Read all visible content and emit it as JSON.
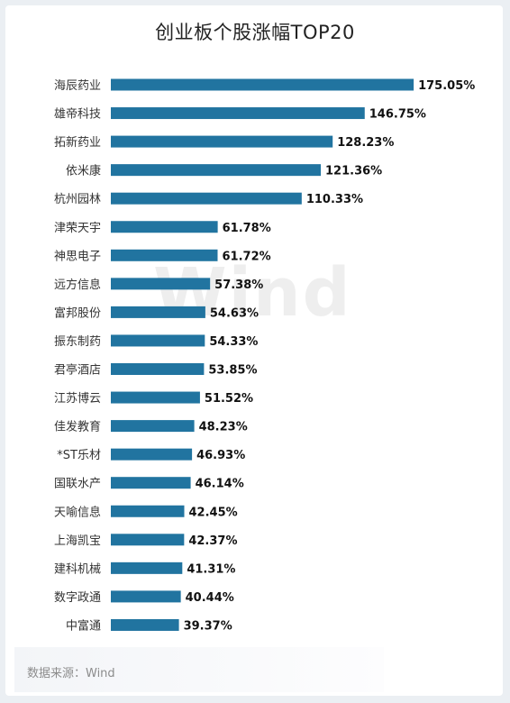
{
  "title": "创业板个股涨幅TOP20",
  "watermark": "Wind",
  "source": "数据来源：Wind",
  "colors": {
    "bar": "#2174a0",
    "background": "#ebeff3"
  },
  "chart_data": {
    "type": "bar",
    "orientation": "horizontal",
    "title": "创业板个股涨幅TOP20",
    "categories": [
      "海辰药业",
      "雄帝科技",
      "拓新药业",
      "依米康",
      "杭州园林",
      "津荣天宇",
      "神思电子",
      "远方信息",
      "富邦股份",
      "振东制药",
      "君亭酒店",
      "江苏博云",
      "佳发教育",
      "*ST乐材",
      "国联水产",
      "天喻信息",
      "上海凯宝",
      "建科机械",
      "数字政通",
      "中富通"
    ],
    "values": [
      175.05,
      146.75,
      128.23,
      121.36,
      110.33,
      61.78,
      61.72,
      57.38,
      54.63,
      54.33,
      53.85,
      51.52,
      48.23,
      46.93,
      46.14,
      42.45,
      42.37,
      41.31,
      40.44,
      39.37
    ],
    "labels": [
      "175.05%",
      "146.75%",
      "128.23%",
      "121.36%",
      "110.33%",
      "61.78%",
      "61.72%",
      "57.38%",
      "54.63%",
      "54.33%",
      "53.85%",
      "51.52%",
      "48.23%",
      "46.93%",
      "46.14%",
      "42.45%",
      "42.37%",
      "41.31%",
      "40.44%",
      "39.37%"
    ],
    "unit": "%",
    "xlabel": "",
    "ylabel": "",
    "legend": "none",
    "grid": false
  }
}
